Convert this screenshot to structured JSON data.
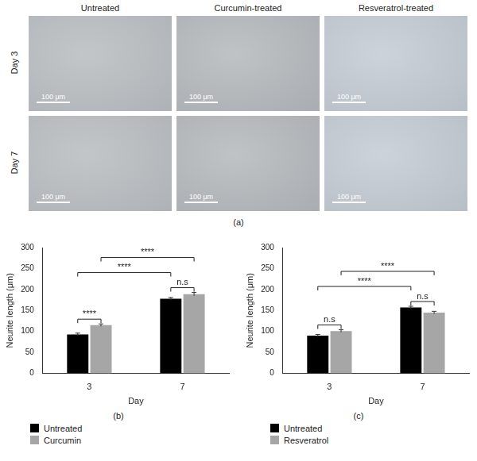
{
  "image_panel": {
    "label": "(a)",
    "columns": [
      "Untreated",
      "Curcumin-treated",
      "Resveratrol-treated"
    ],
    "rows": [
      "Day 3",
      "Day 7"
    ],
    "scale_bar": "100 μm"
  },
  "chart_data": [
    {
      "type": "bar",
      "title": "(b)",
      "categories": [
        "3",
        "7"
      ],
      "xlabel": "Day",
      "ylabel": "Neurite length (μm)",
      "series": [
        {
          "name": "Untreated",
          "color": "#000000",
          "values": [
            93,
            178
          ],
          "errors": [
            3,
            3
          ]
        },
        {
          "name": "Curcumin",
          "color": "#a6a6a6",
          "values": [
            115,
            189
          ],
          "errors": [
            3,
            4
          ]
        }
      ],
      "ylim": [
        0,
        300
      ],
      "yticks": [
        0,
        50,
        100,
        150,
        200,
        250,
        300
      ],
      "grid": false,
      "legend": "bottom",
      "annotations": [
        {
          "text": "****",
          "from": {
            "category": "3",
            "series": "Untreated"
          },
          "to": {
            "category": "3",
            "series": "Curcumin"
          }
        },
        {
          "text": "n.s",
          "from": {
            "category": "7",
            "series": "Untreated"
          },
          "to": {
            "category": "7",
            "series": "Curcumin"
          }
        },
        {
          "text": "****",
          "from": {
            "category": "3",
            "series": "Untreated"
          },
          "to": {
            "category": "7",
            "series": "Untreated"
          }
        },
        {
          "text": "****",
          "from": {
            "category": "3",
            "series": "Curcumin"
          },
          "to": {
            "category": "7",
            "series": "Curcumin"
          }
        }
      ]
    },
    {
      "type": "bar",
      "title": "(c)",
      "categories": [
        "3",
        "7"
      ],
      "xlabel": "Day",
      "ylabel": "Neurite length (μm)",
      "series": [
        {
          "name": "Untreated",
          "color": "#000000",
          "values": [
            90,
            157
          ],
          "errors": [
            3,
            3
          ]
        },
        {
          "name": "Resveratrol",
          "color": "#a6a6a6",
          "values": [
            101,
            145
          ],
          "errors": [
            3,
            3
          ]
        }
      ],
      "ylim": [
        0,
        300
      ],
      "yticks": [
        0,
        50,
        100,
        150,
        200,
        250,
        300
      ],
      "grid": false,
      "legend": "bottom",
      "annotations": [
        {
          "text": "n.s",
          "from": {
            "category": "3",
            "series": "Untreated"
          },
          "to": {
            "category": "3",
            "series": "Resveratrol"
          }
        },
        {
          "text": "n.s",
          "from": {
            "category": "7",
            "series": "Untreated"
          },
          "to": {
            "category": "7",
            "series": "Resveratrol"
          }
        },
        {
          "text": "****",
          "from": {
            "category": "3",
            "series": "Untreated"
          },
          "to": {
            "category": "7",
            "series": "Untreated"
          }
        },
        {
          "text": "****",
          "from": {
            "category": "3",
            "series": "Resveratrol"
          },
          "to": {
            "category": "7",
            "series": "Resveratrol"
          }
        }
      ]
    }
  ]
}
